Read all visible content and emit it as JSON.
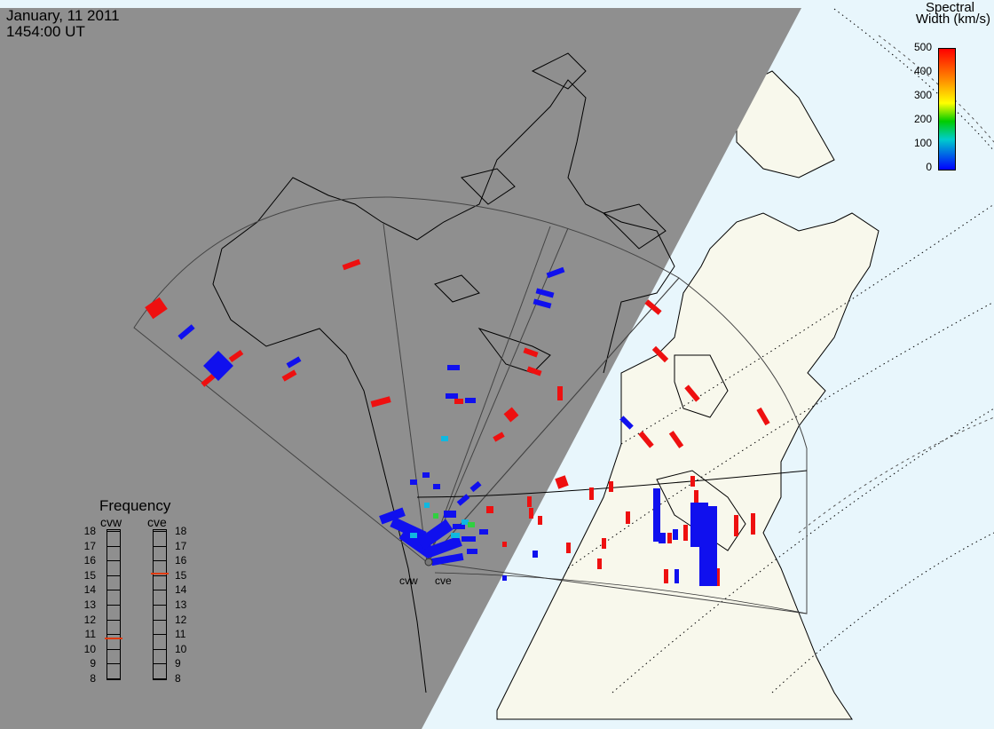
{
  "header": {
    "date": "January, 11 2011",
    "time": "1454:00 UT"
  },
  "colorbar": {
    "title_line1": "Spectral",
    "title_line2": "Width (km/s)",
    "ticks": [
      "500",
      "400",
      "300",
      "200",
      "100",
      "0"
    ],
    "colors": [
      "#ff0000",
      "#ff8800",
      "#ffff00",
      "#00cc00",
      "#00cccc",
      "#0000ff"
    ]
  },
  "radars": [
    {
      "code": "cvw",
      "frequency_mhz": 10.7
    },
    {
      "code": "cve",
      "frequency_mhz": 15.1
    }
  ],
  "frequency_panel": {
    "title": "Frequency",
    "scale": [
      "18",
      "17",
      "16",
      "15",
      "14",
      "13",
      "12",
      "11",
      "10",
      "9",
      "8"
    ]
  },
  "colors": {
    "night": "#8f8f8f",
    "land_day": "#f8f8ec",
    "ocean_day": "#e8f6fc",
    "low_width": "#1010ee",
    "high_width": "#ee1010",
    "marker": "#e03a10"
  }
}
